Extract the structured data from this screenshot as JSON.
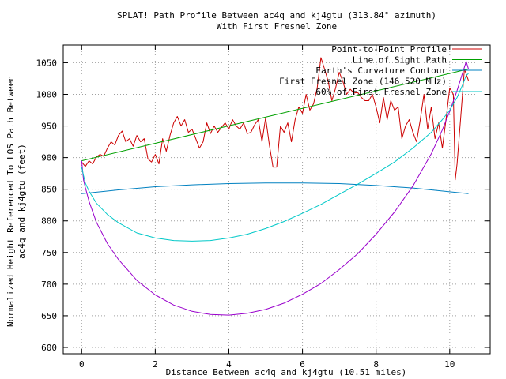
{
  "chart_data": {
    "type": "line",
    "title": "SPLAT! Path Profile Between ac4q and kj4gtu (313.84° azimuth)",
    "subtitle": "With First Fresnel Zone",
    "xlabel": "Distance Between ac4q and kj4gtu (10.51 miles)",
    "ylabel_line1": "Normalized Height Referenced To LOS Path Between",
    "ylabel_line2": "ac4q and kj4gtu (feet)",
    "xlim": [
      -0.5,
      11.1
    ],
    "ylim": [
      590,
      1078
    ],
    "xticks": [
      0,
      2,
      4,
      6,
      8,
      10
    ],
    "yticks": [
      600,
      650,
      700,
      750,
      800,
      850,
      900,
      950,
      1000,
      1050
    ],
    "grid": true,
    "legend_position": "top-right",
    "series": [
      {
        "name": "Point-to-Point Profile",
        "color": "#cc0000",
        "x": [
          0,
          0.1,
          0.2,
          0.3,
          0.4,
          0.5,
          0.6,
          0.7,
          0.8,
          0.9,
          1.0,
          1.1,
          1.2,
          1.3,
          1.4,
          1.5,
          1.6,
          1.7,
          1.8,
          1.9,
          2.0,
          2.1,
          2.2,
          2.3,
          2.4,
          2.5,
          2.6,
          2.7,
          2.8,
          2.9,
          3.0,
          3.1,
          3.2,
          3.3,
          3.4,
          3.5,
          3.6,
          3.7,
          3.8,
          3.9,
          4.0,
          4.1,
          4.2,
          4.3,
          4.4,
          4.5,
          4.6,
          4.7,
          4.8,
          4.9,
          5.0,
          5.1,
          5.2,
          5.3,
          5.4,
          5.5,
          5.6,
          5.7,
          5.8,
          5.9,
          6.0,
          6.1,
          6.2,
          6.3,
          6.4,
          6.5,
          6.6,
          6.7,
          6.8,
          6.9,
          7.0,
          7.1,
          7.2,
          7.3,
          7.4,
          7.5,
          7.6,
          7.7,
          7.8,
          7.9,
          8.0,
          8.1,
          8.2,
          8.3,
          8.4,
          8.5,
          8.6,
          8.7,
          8.8,
          8.9,
          9.0,
          9.1,
          9.2,
          9.3,
          9.4,
          9.5,
          9.6,
          9.7,
          9.8,
          9.9,
          10.0,
          10.1,
          10.15,
          10.2,
          10.3,
          10.4,
          10.51
        ],
        "values": [
          893,
          886,
          895,
          890,
          901,
          905,
          902,
          915,
          925,
          920,
          935,
          942,
          925,
          930,
          918,
          935,
          925,
          930,
          898,
          893,
          905,
          890,
          930,
          910,
          935,
          955,
          965,
          950,
          960,
          940,
          945,
          930,
          915,
          925,
          955,
          938,
          950,
          940,
          948,
          955,
          945,
          960,
          950,
          945,
          955,
          938,
          940,
          952,
          960,
          925,
          963,
          920,
          885,
          885,
          950,
          940,
          955,
          925,
          960,
          980,
          970,
          1000,
          975,
          985,
          1010,
          1058,
          1040,
          1020,
          990,
          1010,
          1035,
          1020,
          1000,
          1008,
          1002,
          1003,
          995,
          990,
          990,
          1000,
          980,
          955,
          995,
          960,
          990,
          975,
          980,
          930,
          950,
          960,
          940,
          925,
          960,
          1000,
          945,
          980,
          930,
          955,
          915,
          960,
          1010,
          1000,
          865,
          890,
          965,
          1040,
          1022
        ]
      },
      {
        "name": "Line of Sight Path",
        "color": "#00a000",
        "x": [
          0,
          10.51
        ],
        "values": [
          895,
          1040
        ]
      },
      {
        "name": "Earth's Curvature Contour",
        "color": "#0080c0",
        "x": [
          0,
          1,
          2,
          3,
          4,
          5,
          6,
          7,
          8,
          9,
          10,
          10.51
        ],
        "values": [
          843,
          849,
          854,
          857,
          859,
          860,
          860,
          859,
          856,
          852,
          846,
          843
        ]
      },
      {
        "name": "First Fresnel Zone (146.520 MHz)",
        "color": "#9900cc",
        "x": [
          0,
          0.05,
          0.1,
          0.2,
          0.4,
          0.7,
          1.0,
          1.5,
          2.0,
          2.5,
          3.0,
          3.5,
          4.0,
          4.5,
          5.0,
          5.5,
          6.0,
          6.5,
          7.0,
          7.5,
          8.0,
          8.5,
          9.0,
          9.5,
          9.8,
          10.0,
          10.2,
          10.35,
          10.45,
          10.51
        ],
        "values": [
          895,
          865,
          853,
          831,
          798,
          764,
          739,
          706,
          683,
          667,
          657,
          652,
          651,
          654,
          660,
          670,
          684,
          701,
          723,
          748,
          779,
          814,
          855,
          906,
          944,
          973,
          1006,
          1034,
          1052,
          1040
        ]
      },
      {
        "name": "60% of First Fresnel Zone",
        "color": "#00c8c8",
        "x": [
          0,
          0.05,
          0.1,
          0.2,
          0.4,
          0.7,
          1.0,
          1.5,
          2.0,
          2.5,
          3.0,
          3.5,
          4.0,
          4.5,
          5.0,
          5.5,
          6.0,
          6.5,
          7.0,
          7.5,
          8.0,
          8.5,
          9.0,
          9.5,
          9.8,
          10.0,
          10.2,
          10.35,
          10.45,
          10.51
        ],
        "values": [
          885,
          872,
          860,
          847,
          828,
          810,
          797,
          781,
          773,
          769,
          768,
          769,
          773,
          779,
          788,
          799,
          812,
          826,
          842,
          858,
          875,
          893,
          915,
          940,
          960,
          975,
          995,
          1015,
          1030,
          1033
        ]
      }
    ]
  }
}
